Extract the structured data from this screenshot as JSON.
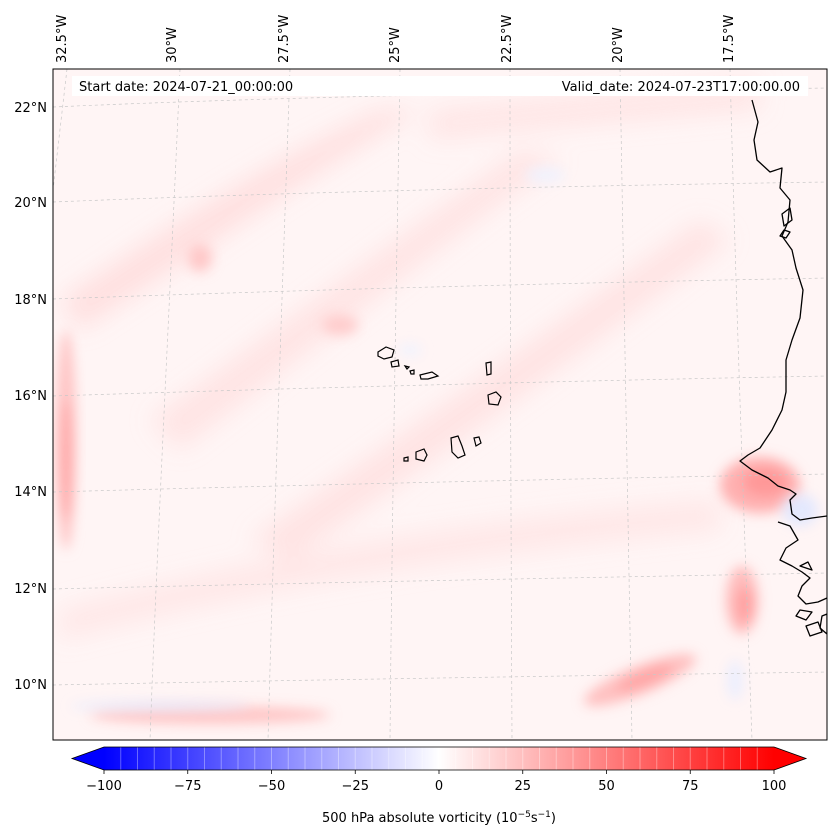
{
  "header": {
    "start_date": "Start date: 2024-07-21_00:00:00",
    "valid_date": "Valid_date: 2024-07-23T17:00:00.00"
  },
  "map": {
    "lon_labels": [
      "32.5°W",
      "30°W",
      "27.5°W",
      "25°W",
      "22.5°W",
      "20°W",
      "17.5°W"
    ],
    "lat_labels": [
      "22°N",
      "20°N",
      "18°N",
      "16°N",
      "14°N",
      "12°N",
      "10°N"
    ],
    "gridlines": "dashed",
    "coastline_color": "#000000"
  },
  "colorbar": {
    "label_main": "500 hPa absolute vorticity (10",
    "label_exp1": "−5",
    "label_mid": "s",
    "label_exp2": "−1",
    "label_close": ")",
    "ticks": [
      "−100",
      "−75",
      "−50",
      "−25",
      "0",
      "25",
      "50",
      "75",
      "100"
    ],
    "colormap": "bwr",
    "min_color": "#0000ff",
    "mid_color": "#ffffff",
    "max_color": "#ff0000",
    "range": [
      -100,
      100
    ]
  }
}
